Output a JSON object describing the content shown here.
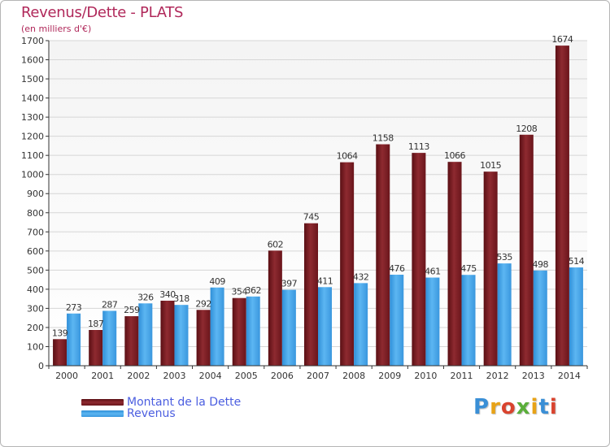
{
  "title": "Revenus/Dette - PLATS",
  "subtitle": "(en milliers d'€)",
  "colors": {
    "dette": "#7a1c22",
    "revenus": "#4ba8ea",
    "title": "#b0285a",
    "legend_text": "#4b5ee0"
  },
  "legend": [
    {
      "label": "Montant de la Dette",
      "color": "#7a1c22"
    },
    {
      "label": "Revenus",
      "color": "#4ba8ea"
    }
  ],
  "logo": {
    "text": "Proxiti"
  },
  "chart_data": {
    "type": "bar",
    "title": "Revenus/Dette - PLATS",
    "ylabel": "(en milliers d'€)",
    "xlabel": "",
    "ylim": [
      0,
      1700
    ],
    "ytick_step": 100,
    "grid": true,
    "legend_position": "bottom-left",
    "categories": [
      "2000",
      "2001",
      "2002",
      "2003",
      "2004",
      "2005",
      "2006",
      "2007",
      "2008",
      "2009",
      "2010",
      "2011",
      "2012",
      "2013",
      "2014"
    ],
    "series": [
      {
        "name": "Montant de la Dette",
        "values": [
          139,
          187,
          259,
          340,
          292,
          354,
          602,
          745,
          1064,
          1158,
          1113,
          1066,
          1015,
          1208,
          1674
        ]
      },
      {
        "name": "Revenus",
        "values": [
          273,
          287,
          326,
          318,
          409,
          362,
          397,
          411,
          432,
          476,
          461,
          475,
          535,
          498,
          514
        ]
      }
    ]
  }
}
